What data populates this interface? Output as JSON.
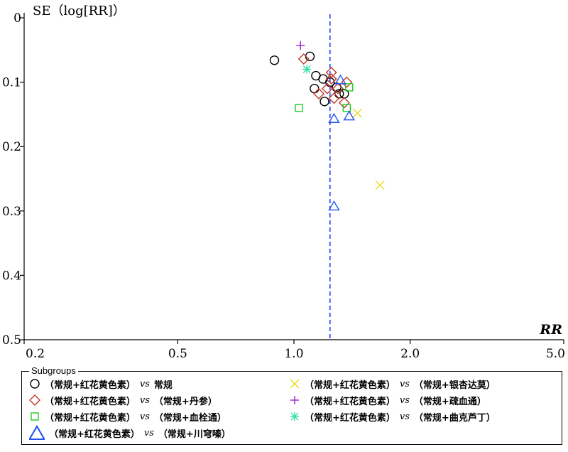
{
  "chart_data": {
    "type": "scatter",
    "title": "",
    "xlabel": "RR",
    "ylabel": "SE（log[RR]）",
    "x_scale": "log",
    "xlim": [
      0.2,
      5.0
    ],
    "ylim": [
      0,
      0.5
    ],
    "y_inverted": true,
    "x_ticks": [
      "0.2",
      "0.5",
      "1.0",
      "2.0",
      "5.0"
    ],
    "y_ticks": [
      "0",
      "0.1",
      "0.2",
      "0.3",
      "0.4",
      "0.5"
    ],
    "reference_line": {
      "x": 1.24,
      "style": "dashed",
      "color": "#1f3fff"
    },
    "legend_title": "Subgroups",
    "legend_vs": "vs",
    "series": [
      {
        "label_a": "（常规+红花黄色素）",
        "label_b": "常规",
        "marker": "circle",
        "color": "#000000",
        "points": [
          [
            0.89,
            0.066
          ],
          [
            1.1,
            0.06
          ],
          [
            1.14,
            0.09
          ],
          [
            1.19,
            0.095
          ],
          [
            1.13,
            0.11
          ],
          [
            1.24,
            0.1
          ],
          [
            1.29,
            0.108
          ],
          [
            1.31,
            0.118
          ],
          [
            1.35,
            0.118
          ],
          [
            1.2,
            0.13
          ]
        ]
      },
      {
        "label_a": "（常规+红花黄色素）",
        "label_b": "（常规+丹参）",
        "marker": "diamond",
        "color": "#c0392b",
        "points": [
          [
            1.06,
            0.064
          ],
          [
            1.25,
            0.085
          ],
          [
            1.37,
            0.1
          ],
          [
            1.25,
            0.095
          ],
          [
            1.22,
            0.11
          ],
          [
            1.3,
            0.11
          ],
          [
            1.16,
            0.118
          ],
          [
            1.27,
            0.125
          ],
          [
            1.35,
            0.132
          ]
        ]
      },
      {
        "label_a": "（常规+红花黄色素）",
        "label_b": "（常规+血栓通）",
        "marker": "square",
        "color": "#22cc22",
        "points": [
          [
            1.03,
            0.14
          ],
          [
            1.39,
            0.108
          ],
          [
            1.37,
            0.14
          ]
        ]
      },
      {
        "label_a": "（常规+红花黄色素）",
        "label_b": "（常规+川穹嗪）",
        "marker": "triangle",
        "color": "#2255ee",
        "points": [
          [
            1.32,
            0.097
          ],
          [
            1.27,
            0.157
          ],
          [
            1.39,
            0.153
          ],
          [
            1.27,
            0.293
          ]
        ]
      },
      {
        "label_a": "（常规+红花黄色素）",
        "label_b": "（常规+银杏达莫）",
        "marker": "x",
        "color": "#e6dd1a",
        "points": [
          [
            1.46,
            0.148
          ],
          [
            1.67,
            0.26
          ]
        ]
      },
      {
        "label_a": "（常规+红花黄色素）",
        "label_b": "（常规+疏血通）",
        "marker": "plus",
        "color": "#9922cc",
        "points": [
          [
            1.04,
            0.043
          ]
        ]
      },
      {
        "label_a": "（常规+红花黄色素）",
        "label_b": "（常规+曲克芦丁）",
        "marker": "asterisk",
        "color": "#33ddaa",
        "points": [
          [
            1.08,
            0.08
          ]
        ]
      }
    ]
  }
}
